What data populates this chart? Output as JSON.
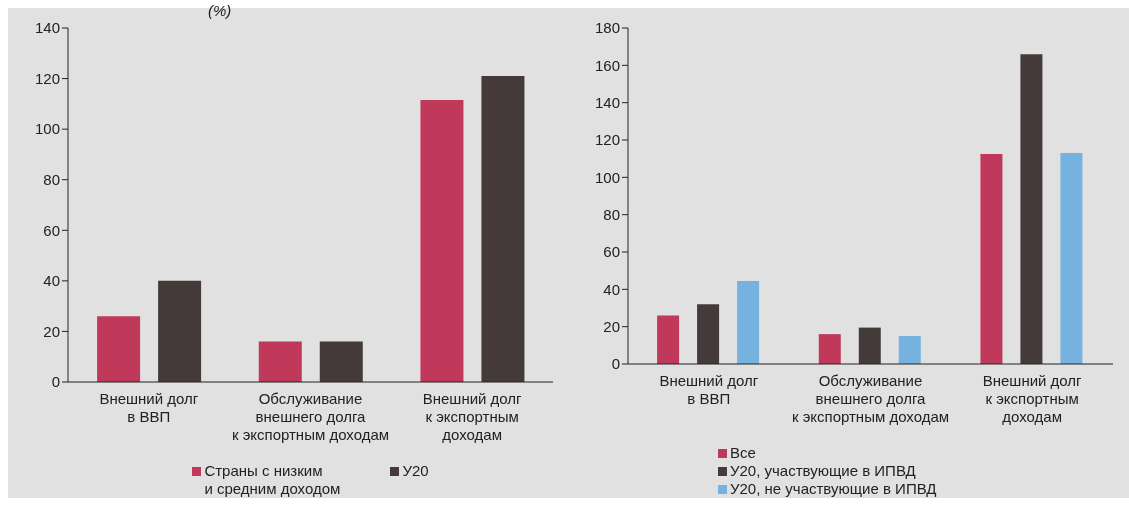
{
  "chart_data": [
    {
      "type": "bar",
      "subtitle": "(%)",
      "categories": [
        "Внешний долг\nв ВВП",
        "Обслуживание\nвнешнего долга\nк экспортным доходам",
        "Внешний долг\nк экспортным\nдоходам"
      ],
      "series": [
        {
          "name": "Страны с низким\nи средним доходом",
          "color": "#c0395a",
          "values": [
            26,
            16,
            111.5
          ]
        },
        {
          "name": "У20",
          "color": "#433a39",
          "values": [
            40,
            16,
            121
          ]
        }
      ],
      "ylim": [
        0,
        140
      ],
      "yticks": [
        0,
        20,
        40,
        60,
        80,
        100,
        120,
        140
      ],
      "legend": "bottom"
    },
    {
      "type": "bar",
      "categories": [
        "Внешний долг\nв ВВП",
        "Обслуживание\nвнешнего долга\nк экспортным доходам",
        "Внешний долг\nк экспортным\nдоходам"
      ],
      "series": [
        {
          "name": "Все",
          "color": "#c0395a",
          "values": [
            26,
            16,
            112.5
          ]
        },
        {
          "name": "У20, участвующие в ИПВД",
          "color": "#433a39",
          "values": [
            32,
            19.5,
            166
          ]
        },
        {
          "name": "У20, не участвующие в ИПВД",
          "color": "#76b2e0",
          "values": [
            44.5,
            15,
            113
          ]
        }
      ],
      "ylim": [
        0,
        180
      ],
      "yticks": [
        0,
        20,
        40,
        60,
        80,
        100,
        120,
        140,
        160,
        180
      ],
      "legend": "bottom"
    }
  ]
}
